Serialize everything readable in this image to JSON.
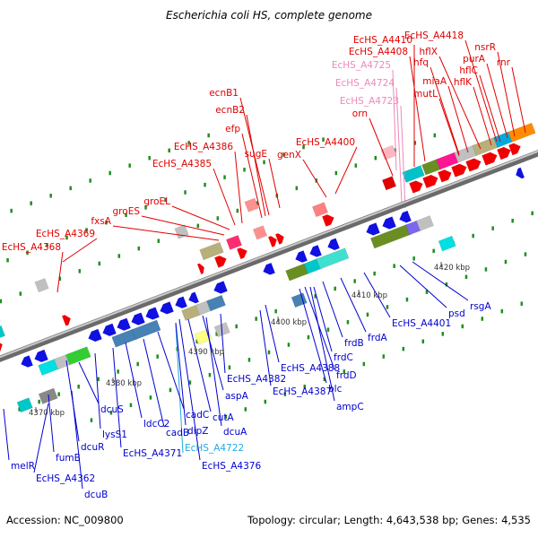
{
  "title": "Escherichia coli HS, complete genome",
  "footer": {
    "accession": "Accession: NC_009800",
    "topology": "Topology: circular; Length: 4,643,538 bp; Genes: 4,535"
  },
  "colors": {
    "forward_label": "#e00000",
    "reverse_label": "#0000d0",
    "rna_label_pink": "#ee88bb",
    "rna_label_cyan": "#22aadd",
    "backbone": "#888888",
    "tick_mark": "#007700"
  },
  "scale_labels": [
    "4370 kbp",
    "4380 kbp",
    "4390 kbp",
    "4400 kbp",
    "4410 kbp",
    "4420 kbp"
  ],
  "forward_labels": [
    "EcHS_A4368",
    "EcHS_A4369",
    "fxsA",
    "groES",
    "groEL",
    "EcHS_A4385",
    "EcHS_A4386",
    "efp",
    "ecnB2",
    "ecnB1",
    "sugE",
    "genX",
    "EcHS_A4400",
    "orn",
    "EcHS_A4410",
    "EcHS_A4408",
    "mutL",
    "miaA",
    "hfq",
    "hflX",
    "hflK",
    "hflC",
    "EcHS_A4418",
    "purA",
    "nsrR",
    "rnr"
  ],
  "rna_labels": [
    "EcHS_A4725",
    "EcHS_A4724",
    "EcHS_A4723",
    "EcHS_A4722"
  ],
  "reverse_labels": [
    "melR",
    "fumB",
    "EcHS_A4362",
    "dcuB",
    "dcuS",
    "dcuR",
    "lysS1",
    "EcHS_A4371",
    "ldcC2",
    "cadB",
    "cadC",
    "dipZ",
    "cutA",
    "aspA",
    "dcuA",
    "EcHS_A4376",
    "EcHS_A4382",
    "EcHS_A4388",
    "EcHS_A4387",
    "blc",
    "ampC",
    "frdD",
    "frdC",
    "frdB",
    "frdA",
    "EcHS_A4401",
    "psd",
    "rsgA"
  ]
}
